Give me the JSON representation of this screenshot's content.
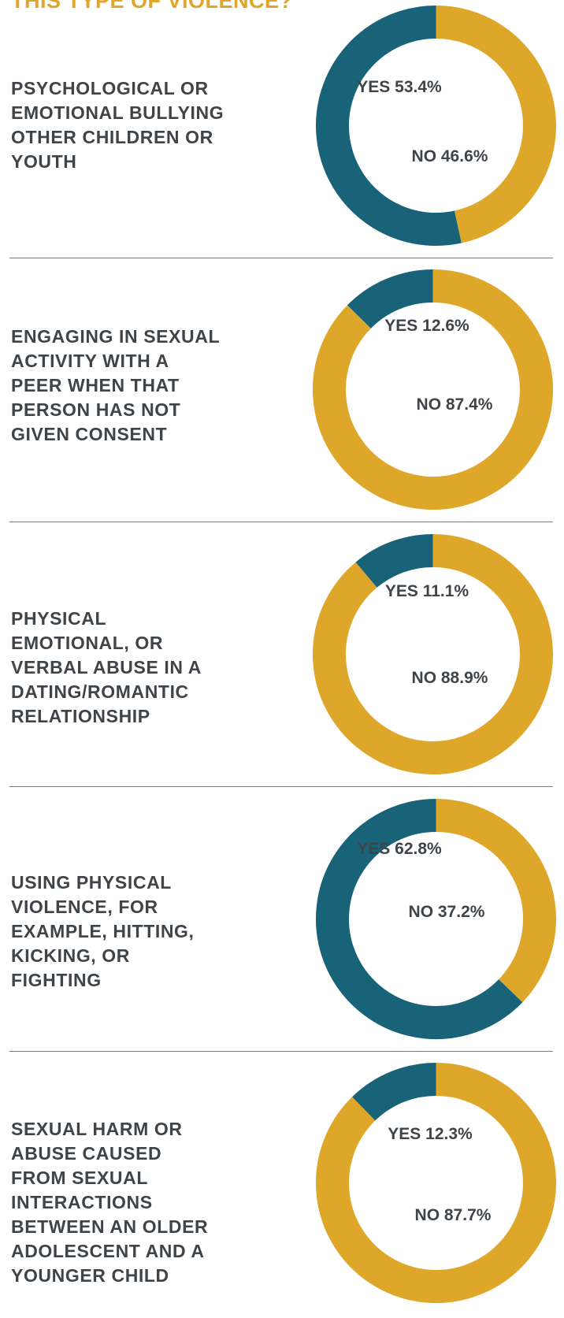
{
  "header": "THIS TYPE OF VIOLENCE?",
  "colors": {
    "yes": "#186378",
    "no": "#dfa72a",
    "label_text": "#3f4449",
    "header": "#e0a62a"
  },
  "chart_data": [
    {
      "type": "pie",
      "label": "PSYCHOLOGICAL OR\nEMOTIONAL BULLYING\nOTHER CHILDREN OR\nYOUTH",
      "slices": [
        {
          "name": "YES",
          "value": 53.4,
          "text": "YES 53.4%"
        },
        {
          "name": "NO",
          "value": 46.6,
          "text": "NO 46.6%"
        }
      ]
    },
    {
      "type": "pie",
      "label": "ENGAGING IN SEXUAL\nACTIVITY WITH A\nPEER WHEN THAT\nPERSON HAS NOT\nGIVEN CONSENT",
      "slices": [
        {
          "name": "YES",
          "value": 12.6,
          "text": "YES 12.6%"
        },
        {
          "name": "NO",
          "value": 87.4,
          "text": "NO 87.4%"
        }
      ]
    },
    {
      "type": "pie",
      "label": "PHYSICAL\nEMOTIONAL, OR\nVERBAL ABUSE IN A\nDATING/ROMANTIC\nRELATIONSHIP",
      "slices": [
        {
          "name": "YES",
          "value": 11.1,
          "text": "YES 11.1%"
        },
        {
          "name": "NO",
          "value": 88.9,
          "text": "NO 88.9%"
        }
      ]
    },
    {
      "type": "pie",
      "label": "USING PHYSICAL\nVIOLENCE, FOR\nEXAMPLE, HITTING,\nKICKING, OR\nFIGHTING",
      "slices": [
        {
          "name": "YES",
          "value": 62.8,
          "text": "YES 62.8%"
        },
        {
          "name": "NO",
          "value": 37.2,
          "text": "NO 37.2%"
        }
      ]
    },
    {
      "type": "pie",
      "label": "SEXUAL HARM OR\nABUSE CAUSED\nFROM SEXUAL\nINTERACTIONS\nBETWEEN AN OLDER\nADOLESCENT AND A\nYOUNGER CHILD",
      "slices": [
        {
          "name": "YES",
          "value": 12.3,
          "text": "YES 12.3%"
        },
        {
          "name": "NO",
          "value": 87.7,
          "text": "NO 87.7%"
        }
      ]
    }
  ]
}
